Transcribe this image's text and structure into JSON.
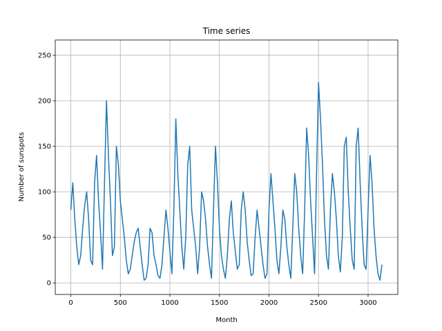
{
  "chart_data": {
    "type": "line",
    "title": "Time series",
    "xlabel": "Month",
    "ylabel": "Number of sunspots",
    "x": [
      0,
      20,
      40,
      60,
      80,
      100,
      120,
      140,
      160,
      180,
      200,
      220,
      240,
      260,
      280,
      300,
      320,
      340,
      360,
      380,
      400,
      420,
      440,
      460,
      480,
      500,
      520,
      540,
      560,
      580,
      600,
      620,
      640,
      660,
      680,
      700,
      720,
      740,
      760,
      780,
      800,
      820,
      840,
      860,
      880,
      900,
      920,
      940,
      960,
      980,
      1000,
      1020,
      1040,
      1060,
      1080,
      1100,
      1120,
      1140,
      1160,
      1180,
      1200,
      1220,
      1240,
      1260,
      1280,
      1300,
      1320,
      1340,
      1360,
      1380,
      1400,
      1420,
      1440,
      1460,
      1480,
      1500,
      1520,
      1540,
      1560,
      1580,
      1600,
      1620,
      1640,
      1660,
      1680,
      1700,
      1720,
      1740,
      1760,
      1780,
      1800,
      1820,
      1840,
      1860,
      1880,
      1900,
      1920,
      1940,
      1960,
      1980,
      2000,
      2020,
      2040,
      2060,
      2080,
      2100,
      2120,
      2140,
      2160,
      2180,
      2200,
      2220,
      2240,
      2260,
      2280,
      2300,
      2320,
      2340,
      2360,
      2380,
      2400,
      2420,
      2440,
      2460,
      2480,
      2500,
      2520,
      2540,
      2560,
      2580,
      2600,
      2620,
      2640,
      2660,
      2680,
      2700,
      2720,
      2740,
      2760,
      2780,
      2800,
      2820,
      2840,
      2860,
      2880,
      2900,
      2920,
      2940,
      2960,
      2980,
      3000,
      3020,
      3040,
      3060,
      3080,
      3100,
      3120,
      3140
    ],
    "series": [
      {
        "name": "Number of sunspots",
        "color": "#1f77b4",
        "values": [
          80,
          110,
          70,
          40,
          20,
          30,
          60,
          85,
          100,
          70,
          25,
          20,
          110,
          140,
          90,
          55,
          15,
          110,
          200,
          140,
          90,
          30,
          40,
          150,
          130,
          90,
          70,
          50,
          25,
          10,
          15,
          30,
          45,
          55,
          60,
          40,
          20,
          3,
          5,
          20,
          60,
          55,
          30,
          20,
          8,
          5,
          20,
          50,
          80,
          60,
          35,
          10,
          80,
          180,
          120,
          80,
          40,
          15,
          50,
          130,
          150,
          80,
          60,
          40,
          10,
          40,
          100,
          90,
          70,
          40,
          20,
          5,
          80,
          150,
          110,
          60,
          30,
          15,
          5,
          30,
          70,
          90,
          55,
          35,
          15,
          20,
          80,
          100,
          80,
          45,
          25,
          8,
          10,
          50,
          80,
          60,
          40,
          20,
          5,
          10,
          80,
          120,
          90,
          60,
          25,
          10,
          40,
          80,
          70,
          40,
          20,
          5,
          60,
          120,
          100,
          60,
          30,
          10,
          80,
          170,
          140,
          90,
          50,
          10,
          120,
          220,
          180,
          130,
          70,
          30,
          15,
          80,
          120,
          100,
          70,
          30,
          12,
          50,
          150,
          160,
          100,
          60,
          25,
          15,
          150,
          170,
          110,
          60,
          20,
          15,
          80,
          140,
          110,
          60,
          30,
          10,
          3,
          20
        ]
      }
    ],
    "xlim": [
      -157,
      3300
    ],
    "ylim": [
      -12.7,
      266.7
    ],
    "xticks": [
      0,
      500,
      1000,
      1500,
      2000,
      2500,
      3000
    ],
    "yticks": [
      0,
      50,
      100,
      150,
      200,
      250
    ],
    "grid": true
  }
}
